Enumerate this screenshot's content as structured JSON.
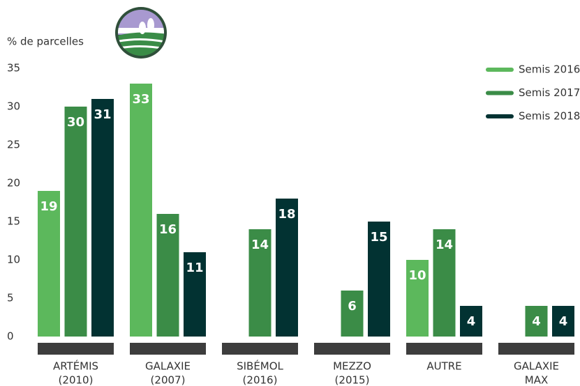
{
  "chart_data": {
    "type": "bar",
    "y_label": "% de parcelles",
    "categories": [
      [
        "ARTÉMIS",
        "(2010)"
      ],
      [
        "GALAXIE",
        "(2007)"
      ],
      [
        "SIBÉMOL",
        "(2016)"
      ],
      [
        "MEZZO",
        "(2015)"
      ],
      [
        "AUTRE"
      ],
      [
        "GALAXIE",
        "MAX"
      ]
    ],
    "series": [
      {
        "name": "Semis 2016",
        "color": "#5cb85c",
        "values": [
          19,
          33,
          null,
          null,
          10,
          null
        ]
      },
      {
        "name": "Semis 2017",
        "color": "#3b8c47",
        "values": [
          30,
          16,
          14,
          6,
          14,
          4
        ]
      },
      {
        "name": "Semis 2018",
        "color": "#023232",
        "values": [
          31,
          11,
          18,
          15,
          4,
          4
        ]
      }
    ],
    "ylim": [
      0,
      35
    ],
    "yticks": [
      0,
      5,
      10,
      15,
      20,
      25,
      30,
      35
    ],
    "legend": "top-right"
  }
}
